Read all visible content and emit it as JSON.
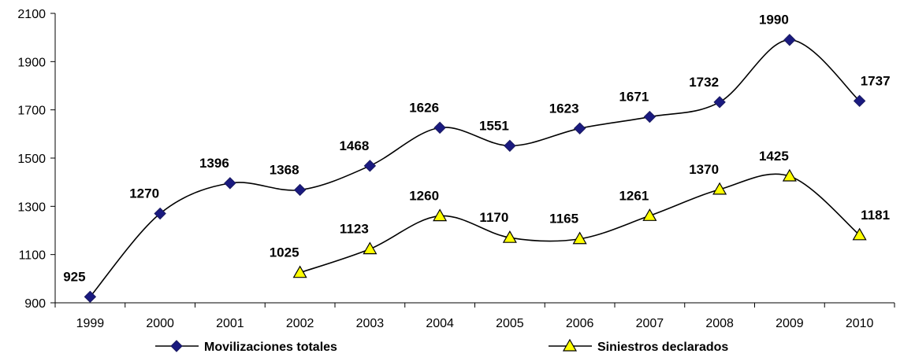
{
  "chart_data": {
    "type": "line",
    "title": "",
    "xlabel": "",
    "ylabel": "",
    "categories": [
      "1999",
      "2000",
      "2001",
      "2002",
      "2003",
      "2004",
      "2005",
      "2006",
      "2007",
      "2008",
      "2009",
      "2010"
    ],
    "ylim": [
      900,
      2100
    ],
    "yticks": [
      900,
      1100,
      1300,
      1500,
      1700,
      1900,
      2100
    ],
    "grid": false,
    "legend": "bottom",
    "smooth": true,
    "series": [
      {
        "name": "Movilizaciones totales",
        "marker": "diamond",
        "color": "#000000",
        "marker_color": "#1a1a80",
        "values": [
          925,
          1270,
          1396,
          1368,
          1468,
          1626,
          1551,
          1623,
          1671,
          1732,
          1990,
          1737
        ]
      },
      {
        "name": "Siniestros declarados",
        "marker": "triangle",
        "color": "#000000",
        "marker_color": "#ffff00",
        "values": [
          null,
          null,
          null,
          1025,
          1123,
          1260,
          1170,
          1165,
          1261,
          1370,
          1425,
          1181
        ]
      }
    ]
  }
}
